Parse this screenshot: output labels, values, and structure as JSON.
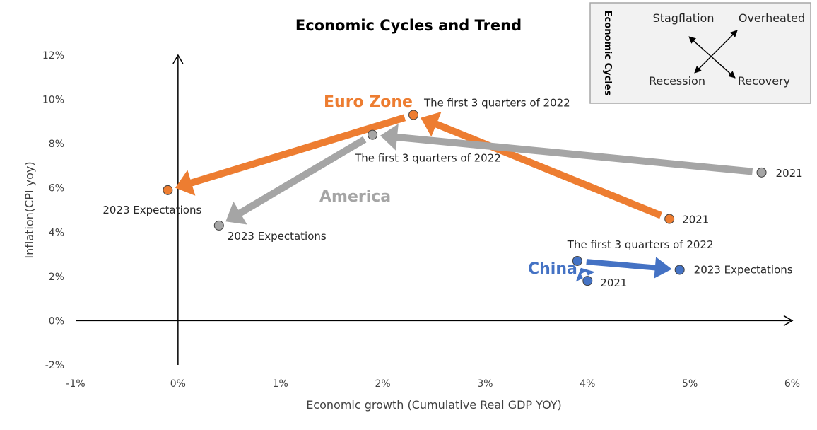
{
  "chart_data": {
    "type": "scatter",
    "title": "Economic Cycles and Trend",
    "xlabel": "Economic growth (Cumulative Real GDP YOY)",
    "ylabel": "Inflation(CPI yoy)",
    "xlim": [
      -1,
      6
    ],
    "ylim": [
      -2,
      12
    ],
    "x_ticks": [
      -1,
      0,
      1,
      2,
      3,
      4,
      5,
      6
    ],
    "x_tick_labels": [
      "-1%",
      "0%",
      "1%",
      "2%",
      "3%",
      "4%",
      "5%",
      "6%"
    ],
    "y_ticks": [
      -2,
      0,
      2,
      4,
      6,
      8,
      10,
      12
    ],
    "y_tick_labels": [
      "-2%",
      "0%",
      "2%",
      "4%",
      "6%",
      "8%",
      "10%",
      "12%"
    ],
    "grid": false,
    "series": [
      {
        "name": "Euro Zone",
        "color": "#ED7D31",
        "points": [
          {
            "label": "2021",
            "x": 4.8,
            "y": 4.6
          },
          {
            "label": "The first 3 quarters of 2022",
            "x": 2.3,
            "y": 9.3
          },
          {
            "label": "2023 Expectations",
            "x": -0.1,
            "y": 5.9
          }
        ]
      },
      {
        "name": "America",
        "color": "#A5A5A5",
        "points": [
          {
            "label": "2021",
            "x": 5.7,
            "y": 6.7
          },
          {
            "label": "The first 3 quarters of 2022",
            "x": 1.9,
            "y": 8.4
          },
          {
            "label": "2023 Expectations",
            "x": 0.4,
            "y": 4.3
          }
        ]
      },
      {
        "name": "China",
        "color": "#4472C4",
        "points": [
          {
            "label": "2021",
            "x": 4.0,
            "y": 1.8
          },
          {
            "label": "The first 3 quarters of 2022",
            "x": 3.9,
            "y": 2.7
          },
          {
            "label": "2023 Expectations",
            "x": 4.9,
            "y": 2.3
          }
        ]
      }
    ],
    "legend": {
      "title": "Economic Cycles",
      "top_left": "Stagflation",
      "top_right": "Overheated",
      "bottom_left": "Recession",
      "bottom_right": "Recovery",
      "placement": "top-right"
    }
  }
}
